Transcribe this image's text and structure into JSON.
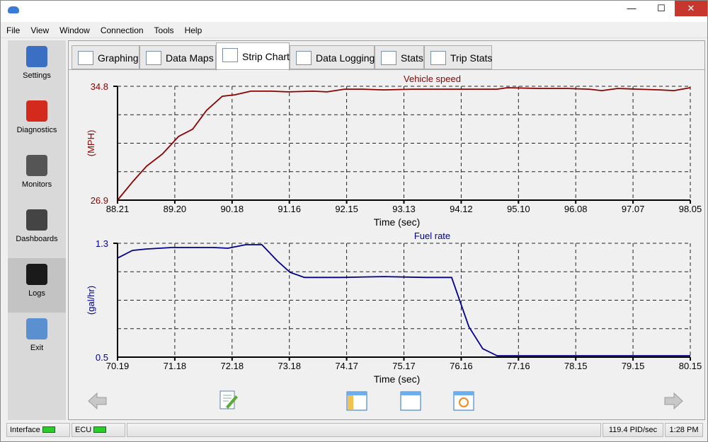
{
  "window": {
    "minimize": "—",
    "maximize": "☐",
    "close": "✕"
  },
  "menu": [
    "File",
    "View",
    "Window",
    "Connection",
    "Tools",
    "Help"
  ],
  "sidebar": [
    {
      "label": "Settings",
      "icon": "checklist-icon",
      "color": "#3a6fc4"
    },
    {
      "label": "Diagnostics",
      "icon": "car-icon",
      "color": "#d42a1e"
    },
    {
      "label": "Monitors",
      "icon": "engine-magnifier-icon",
      "color": "#555555"
    },
    {
      "label": "Dashboards",
      "icon": "gauge-icon",
      "color": "#444444"
    },
    {
      "label": "Logs",
      "icon": "oscilloscope-icon",
      "color": "#1a1a1a",
      "active": true
    },
    {
      "label": "Exit",
      "icon": "exit-door-icon",
      "color": "#5a8fd0"
    }
  ],
  "tabs": [
    {
      "label": "Graphing",
      "icon": "graph-icon"
    },
    {
      "label": "Data Maps",
      "icon": "grid-map-icon"
    },
    {
      "label": "Strip Chart",
      "icon": "strip-chart-icon",
      "active": true
    },
    {
      "label": "Data Logging",
      "icon": "database-icon"
    },
    {
      "label": "Stats",
      "icon": "stats-sheet-icon"
    },
    {
      "label": "Trip Stats",
      "icon": "calendar-clock-icon"
    }
  ],
  "chart_data": [
    {
      "type": "line",
      "title": "Vehicle speed",
      "xlabel": "Time (sec)",
      "ylabel": "(MPH)",
      "color": "#8b0000",
      "grid": true,
      "xlim": [
        88.21,
        98.05
      ],
      "ylim": [
        26.9,
        34.8
      ],
      "xticks": [
        "88.21",
        "89.20",
        "90.18",
        "91.16",
        "92.15",
        "93.13",
        "94.12",
        "95.10",
        "96.08",
        "97.07",
        "98.05"
      ],
      "yticks": [
        "26.9",
        "34.8"
      ],
      "x": [
        88.21,
        88.47,
        88.71,
        88.98,
        89.26,
        89.5,
        89.74,
        90.01,
        90.23,
        90.5,
        90.84,
        91.14,
        91.57,
        91.81,
        92.11,
        92.42,
        92.78,
        93.27,
        93.76,
        94.24,
        94.73,
        94.91,
        95.46,
        95.94,
        96.31,
        96.53,
        96.8,
        97.16,
        97.53,
        97.77,
        98.05
      ],
      "y": [
        26.9,
        28.18,
        29.26,
        30.1,
        31.32,
        31.82,
        33.13,
        34.11,
        34.21,
        34.46,
        34.46,
        34.41,
        34.46,
        34.41,
        34.6,
        34.6,
        34.55,
        34.6,
        34.6,
        34.6,
        34.6,
        34.7,
        34.65,
        34.65,
        34.6,
        34.5,
        34.65,
        34.6,
        34.55,
        34.5,
        34.7
      ]
    },
    {
      "type": "line",
      "title": "Fuel rate",
      "xlabel": "Time (sec)",
      "ylabel": "(gal/hr)",
      "color": "#00008b",
      "grid": true,
      "xlim": [
        70.19,
        80.15
      ],
      "ylim": [
        0.5,
        1.3
      ],
      "xticks": [
        "70.19",
        "71.18",
        "72.18",
        "73.18",
        "74.17",
        "75.17",
        "76.16",
        "77.16",
        "78.15",
        "79.15",
        "80.15"
      ],
      "yticks": [
        "0.5",
        "1.3"
      ],
      "x": [
        70.19,
        70.45,
        70.69,
        71.13,
        71.86,
        72.11,
        72.42,
        72.7,
        72.97,
        73.19,
        73.44,
        74.08,
        74.82,
        75.56,
        76.0,
        76.3,
        76.54,
        76.79,
        77.28,
        78.02,
        79.25,
        80.15
      ],
      "y": [
        1.196,
        1.25,
        1.26,
        1.27,
        1.27,
        1.265,
        1.29,
        1.29,
        1.176,
        1.096,
        1.06,
        1.06,
        1.066,
        1.06,
        1.06,
        0.713,
        0.559,
        0.51,
        0.51,
        0.51,
        0.51,
        0.51
      ]
    }
  ],
  "toolbar": {
    "back": "back-arrow-icon",
    "edit": "edit-note-icon",
    "split": "split-view-icon",
    "single": "single-view-icon",
    "fit": "fit-view-icon",
    "forward": "forward-arrow-icon"
  },
  "status": {
    "interface": "Interface",
    "ecu": "ECU",
    "rate": "119.4 PID/sec",
    "time": "1:28 PM",
    "led_color": "#2dcc2d"
  }
}
